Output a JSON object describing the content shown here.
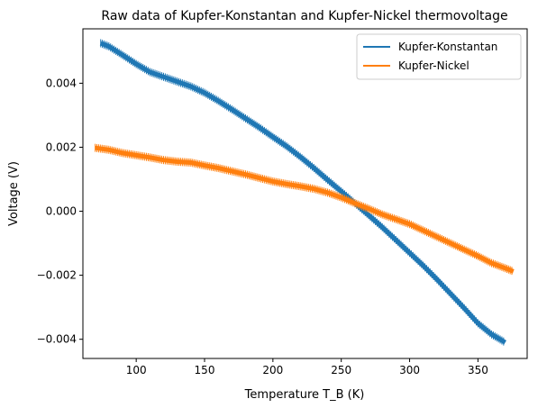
{
  "chart_data": {
    "type": "line",
    "title": "Raw data of Kupfer-Konstantan and Kupfer-Nickel thermovoltage",
    "xlabel": "Temperature T_B (K)",
    "ylabel": "Voltage (V)",
    "xlim": [
      61,
      386
    ],
    "ylim": [
      -0.0046,
      0.0057
    ],
    "xticks": [
      100,
      150,
      200,
      250,
      300,
      350
    ],
    "xtick_labels": [
      "100",
      "150",
      "200",
      "250",
      "300",
      "350"
    ],
    "yticks": [
      -0.004,
      -0.002,
      0.0,
      0.002,
      0.004
    ],
    "ytick_labels": [
      "−0.004",
      "−0.002",
      "0.000",
      "0.002",
      "0.004"
    ],
    "grid": false,
    "legend": "top-right",
    "series": [
      {
        "name": "Kupfer-Konstantan",
        "color": "#1f77b4",
        "x": [
          74,
          80,
          90,
          100,
          110,
          120,
          130,
          140,
          150,
          160,
          170,
          180,
          190,
          200,
          210,
          220,
          230,
          240,
          250,
          260,
          270,
          280,
          290,
          300,
          310,
          320,
          330,
          340,
          350,
          360,
          370
        ],
        "y": [
          0.00525,
          0.00515,
          0.00488,
          0.0046,
          0.00435,
          0.0042,
          0.00405,
          0.0039,
          0.0037,
          0.00345,
          0.00318,
          0.0029,
          0.00262,
          0.00232,
          0.00203,
          0.0017,
          0.00135,
          0.00098,
          0.00062,
          0.00025,
          -0.00012,
          -0.0005,
          -0.0009,
          -0.0013,
          -0.0017,
          -0.00213,
          -0.00258,
          -0.00303,
          -0.0035,
          -0.00385,
          -0.0041
        ]
      },
      {
        "name": "Kupfer-Nickel",
        "color": "#ff7f0e",
        "x": [
          70,
          80,
          90,
          100,
          110,
          120,
          130,
          140,
          150,
          160,
          170,
          180,
          190,
          200,
          210,
          220,
          230,
          240,
          250,
          260,
          270,
          280,
          290,
          300,
          310,
          320,
          330,
          340,
          350,
          360,
          370,
          376
        ],
        "y": [
          0.00198,
          0.00192,
          0.00182,
          0.00175,
          0.00168,
          0.0016,
          0.00155,
          0.00152,
          0.00143,
          0.00135,
          0.00125,
          0.00115,
          0.00104,
          0.00093,
          0.00085,
          0.00078,
          0.0007,
          0.00058,
          0.00043,
          0.00025,
          8e-05,
          -0.0001,
          -0.00025,
          -0.0004,
          -0.0006,
          -0.0008,
          -0.001,
          -0.0012,
          -0.0014,
          -0.00162,
          -0.00178,
          -0.00188
        ]
      }
    ]
  }
}
